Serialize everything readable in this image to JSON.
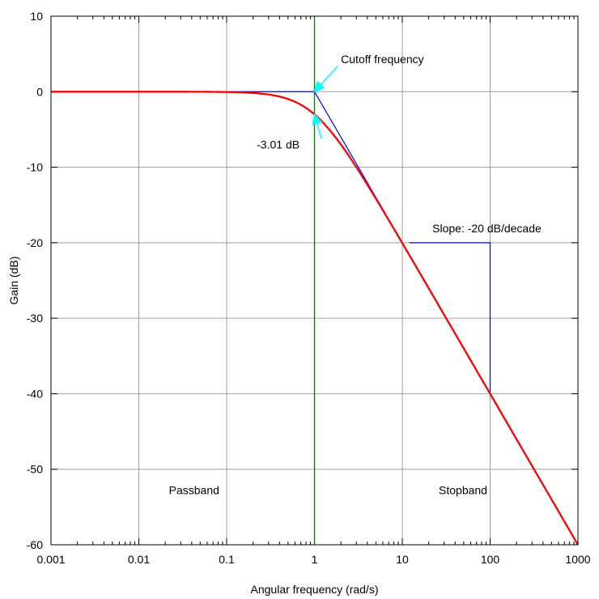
{
  "chart_data": {
    "type": "line",
    "title": "",
    "xlabel": "Angular frequency (rad/s)",
    "ylabel": "Gain (dB)",
    "xscale": "log",
    "xlim": [
      0.001,
      1000
    ],
    "ylim": [
      -60,
      10
    ],
    "grid": true,
    "x_ticks": [
      0.001,
      0.01,
      0.1,
      1,
      10,
      100,
      1000
    ],
    "x_tick_labels": [
      "0.001",
      "0.01",
      "0.1",
      "1",
      "10",
      "100",
      "1000"
    ],
    "y_ticks": [
      10,
      0,
      -10,
      -20,
      -30,
      -40,
      -50,
      -60
    ],
    "y_tick_labels": [
      "10",
      "0",
      "-10",
      "-20",
      "-30",
      "-40",
      "-50",
      "-60"
    ],
    "series": [
      {
        "role": "response",
        "color": "#ff0000",
        "function": "-10*log10(1+x^2)",
        "x": [
          0.001,
          0.01,
          0.1,
          0.3,
          0.5,
          1,
          2,
          3,
          5,
          10,
          30,
          100,
          300,
          1000
        ],
        "y": [
          0,
          0,
          -0.04,
          -0.37,
          -0.97,
          -3.01,
          -6.99,
          -10,
          -14.15,
          -20.04,
          -29.54,
          -40,
          -49.54,
          -60
        ]
      },
      {
        "role": "asymptote",
        "color": "#0000ff",
        "x": [
          0.001,
          1,
          10
        ],
        "y": [
          0,
          0,
          -20
        ]
      }
    ],
    "cutoff_line": {
      "x": 1,
      "color": "#007700"
    },
    "slope_marker": {
      "color": "#0000ff",
      "points": [
        [
          12,
          -20
        ],
        [
          100,
          -20
        ],
        [
          100,
          -40
        ]
      ]
    },
    "annotations": [
      {
        "text": "Cutoff frequency",
        "x": 2,
        "y": 3.8,
        "arrow_to": [
          1,
          0
        ],
        "arrow_color": "#00ffff"
      },
      {
        "text": "-3.01 dB",
        "x": 0.22,
        "y": -7.5,
        "arrow_to": [
          1,
          -3.01
        ],
        "arrow_color": "#00ffff"
      },
      {
        "text": "Slope: -20 dB/decade",
        "x": 22,
        "y": -18.6
      },
      {
        "text": "Passband",
        "x": 0.022,
        "y": -53.3
      },
      {
        "text": "Stopband",
        "x": 26,
        "y": -53.3
      }
    ]
  }
}
